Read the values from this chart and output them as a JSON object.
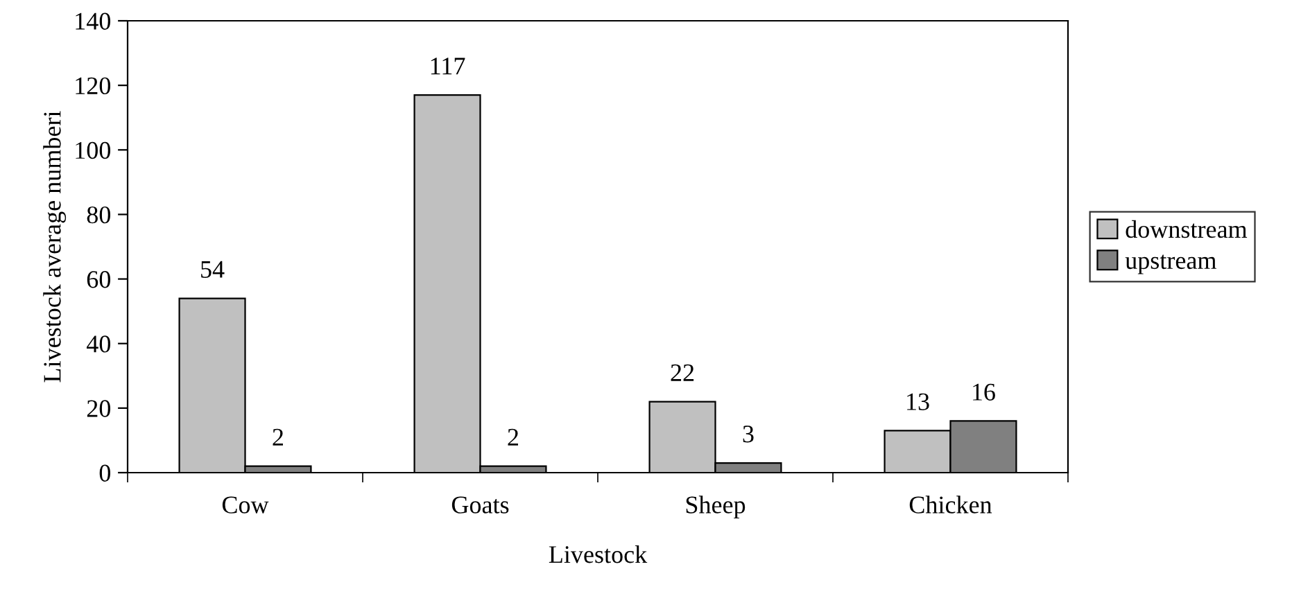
{
  "chart_data": {
    "type": "bar",
    "xlabel": "Livestock",
    "ylabel": "Livestock average numberi",
    "categories": [
      "Cow",
      "Goats",
      "Sheep",
      "Chicken"
    ],
    "series": [
      {
        "name": "downstream",
        "color": "#c0c0c0",
        "values": [
          54,
          117,
          22,
          13
        ]
      },
      {
        "name": "upstream",
        "color": "#808080",
        "values": [
          2,
          2,
          3,
          16
        ]
      }
    ],
    "ylim": [
      0,
      140
    ],
    "yticks": [
      0,
      20,
      40,
      60,
      80,
      100,
      120,
      140
    ],
    "data_labels": true,
    "grid": false,
    "legend": "right"
  }
}
